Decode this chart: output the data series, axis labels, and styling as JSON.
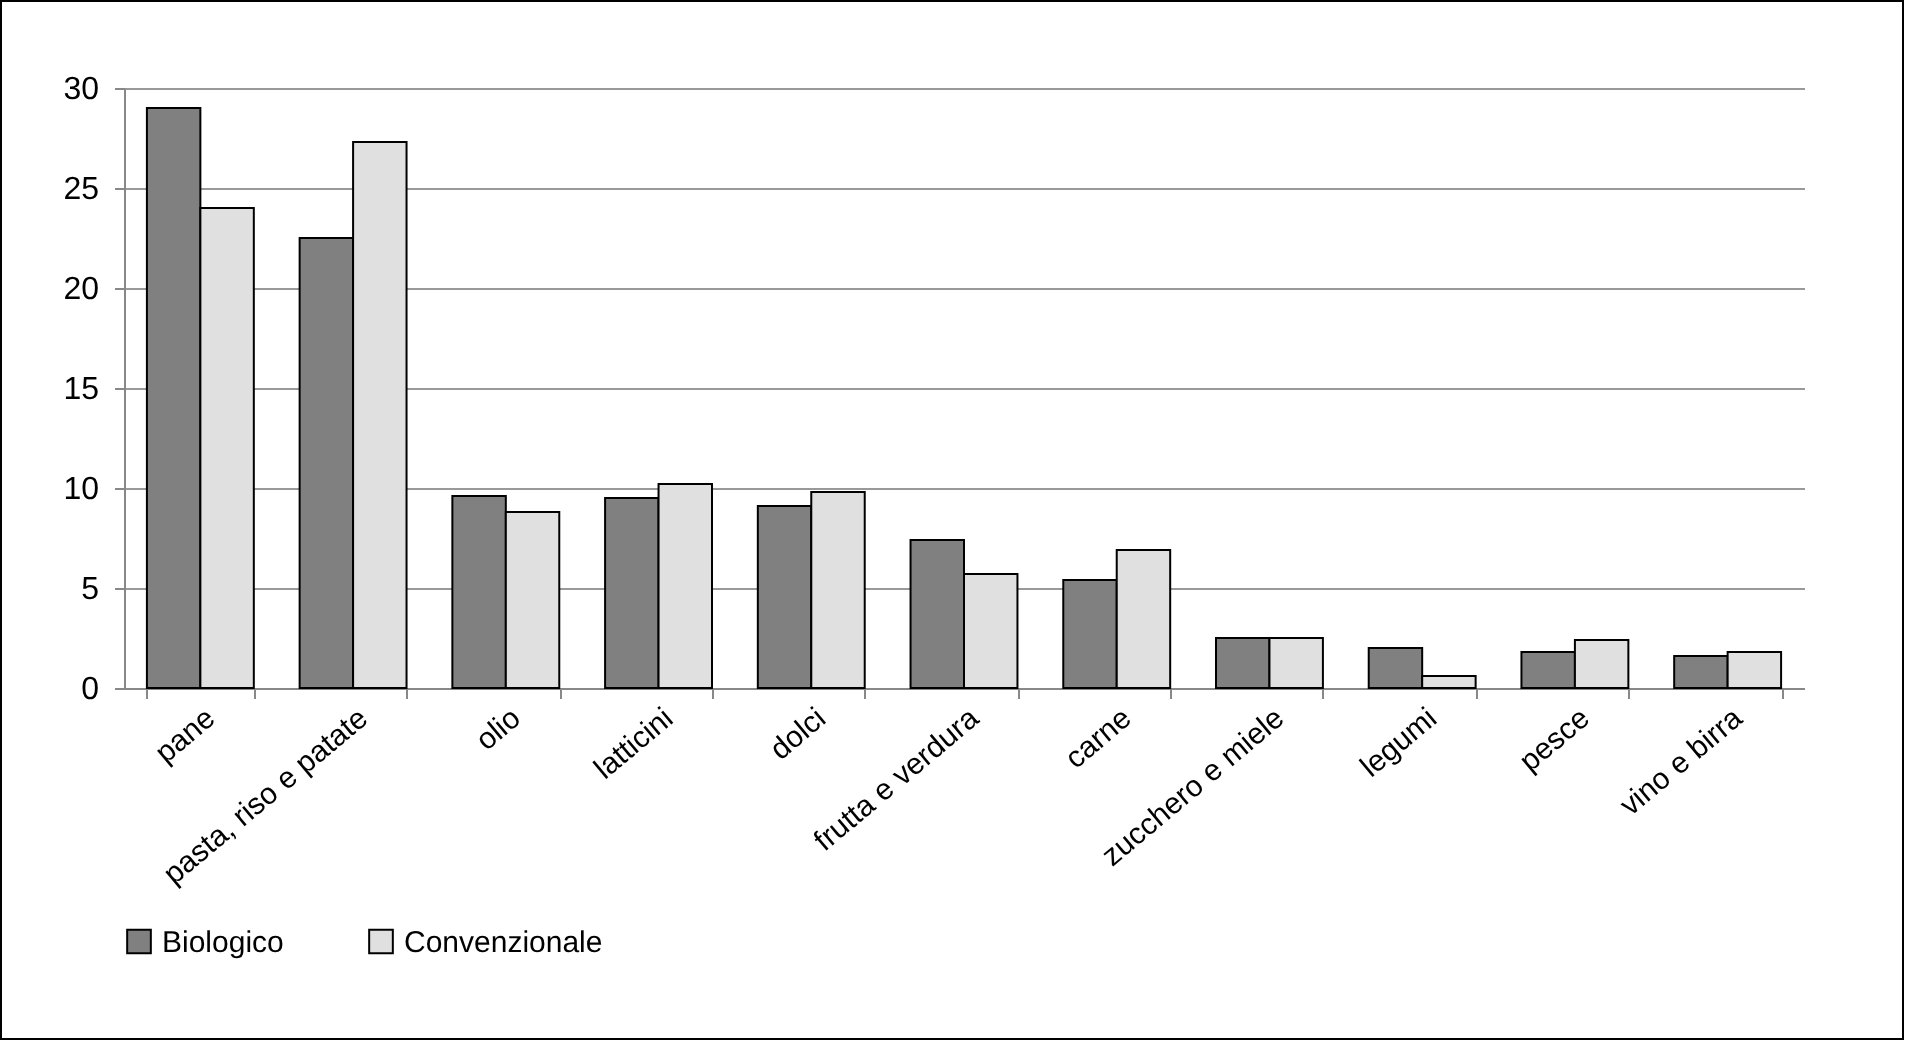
{
  "chart_data": {
    "type": "bar",
    "categories": [
      "pane",
      "pasta, riso e patate",
      "olio",
      "latticini",
      "dolci",
      "frutta e verdura",
      "carne",
      "zucchero e miele",
      "legumi",
      "pesce",
      "vino e birra"
    ],
    "series": [
      {
        "name": "Biologico",
        "color": "#808080",
        "values": [
          29,
          22.5,
          9.6,
          9.5,
          9.1,
          7.4,
          5.4,
          2.5,
          2.0,
          1.8,
          1.6
        ]
      },
      {
        "name": "Convenzionale",
        "color": "#e0e0e0",
        "values": [
          24,
          27.3,
          8.8,
          10.2,
          9.8,
          5.7,
          6.9,
          2.5,
          0.6,
          2.4,
          1.8
        ]
      }
    ],
    "ylim": [
      0,
      30
    ],
    "yticks": [
      0,
      5,
      10,
      15,
      20,
      25,
      30
    ],
    "grid": "y",
    "legend": "bottom"
  }
}
